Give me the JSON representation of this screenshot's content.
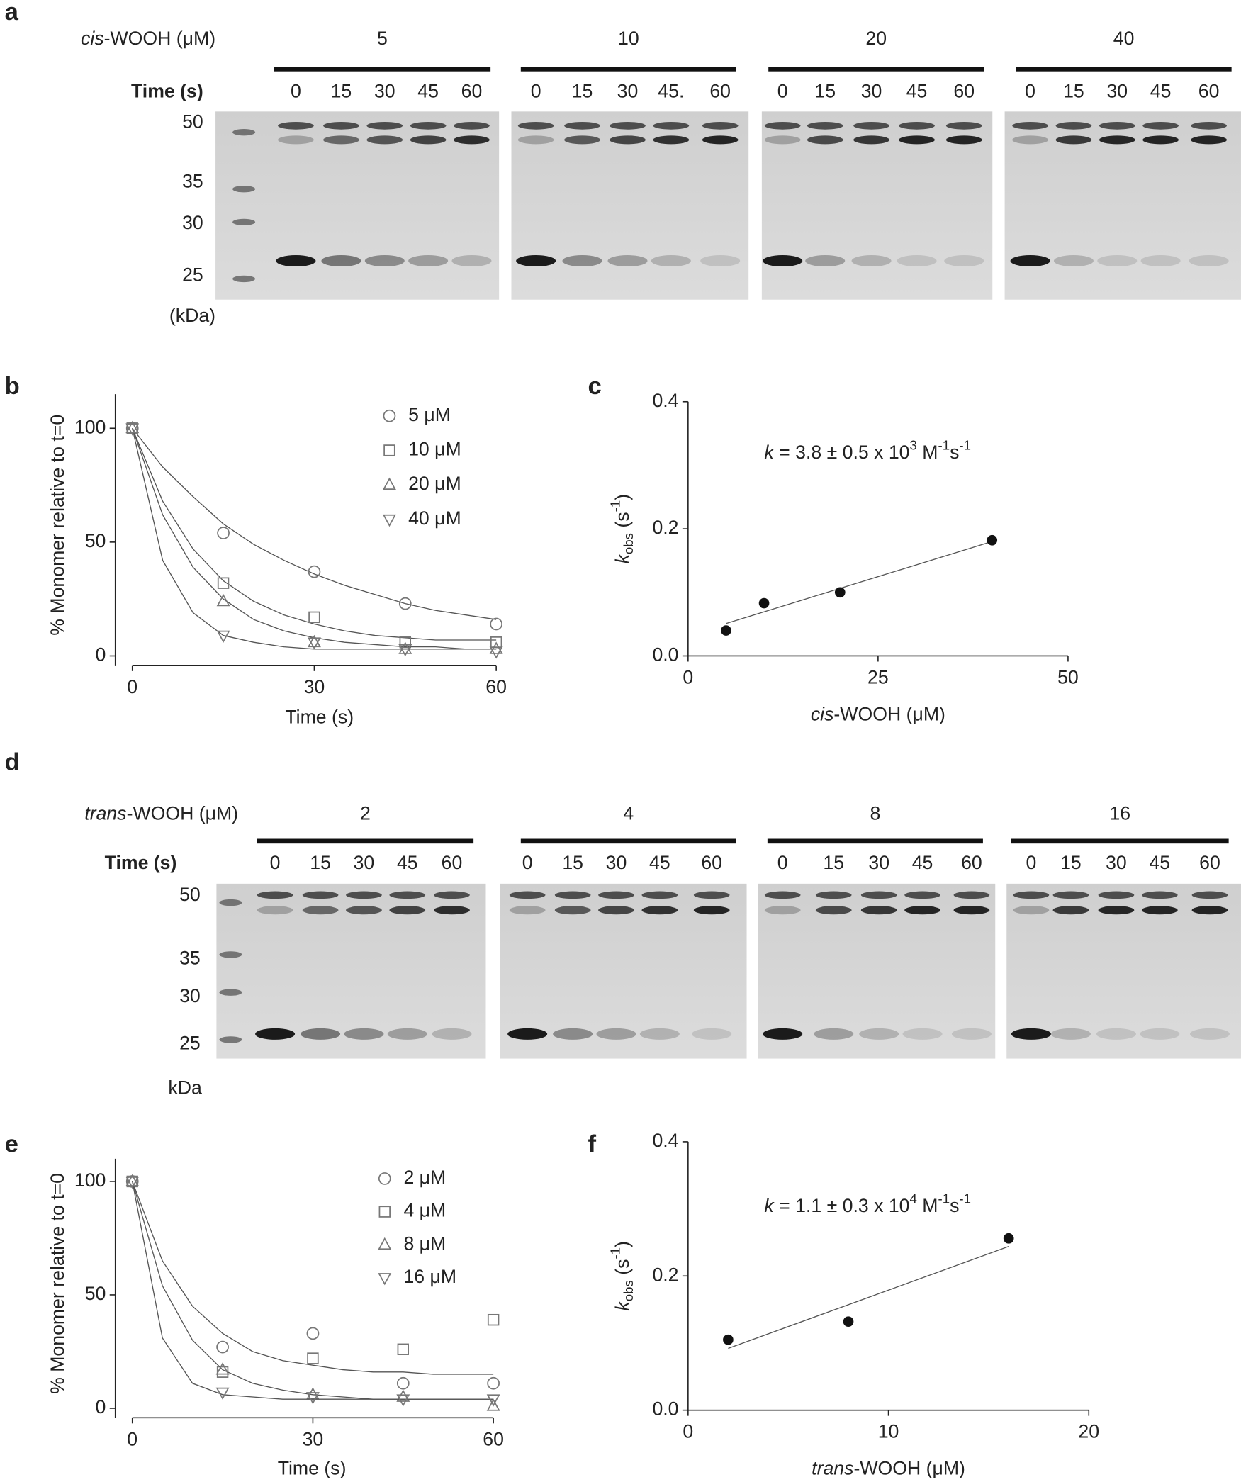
{
  "gels": [
    {
      "panel": "a",
      "concentration_label": [
        {
          "text": "cis",
          "style": "italic"
        },
        {
          "text": "-WOOH (μM)"
        }
      ],
      "time_label": "Time (s)",
      "groups": [
        {
          "concentration": "5",
          "times": [
            "0",
            "15",
            "30",
            "45",
            "60"
          ]
        },
        {
          "concentration": "10",
          "times": [
            "0",
            "15",
            "30",
            "45.",
            "60"
          ]
        },
        {
          "concentration": "20",
          "times": [
            "0",
            "15",
            "30",
            "45",
            "60"
          ]
        },
        {
          "concentration": "40",
          "times": [
            "0",
            "15",
            "30",
            "45",
            "60"
          ]
        }
      ],
      "markers": [
        "50",
        "35",
        "30",
        "25"
      ],
      "unit": "(kDa)"
    },
    {
      "panel": "d",
      "concentration_label": [
        {
          "text": "trans",
          "style": "italic"
        },
        {
          "text": "-WOOH (μM)"
        }
      ],
      "time_label": "Time (s)",
      "groups": [
        {
          "concentration": "2",
          "times": [
            "0",
            "15",
            "30",
            "45",
            "60"
          ]
        },
        {
          "concentration": "4",
          "times": [
            "0",
            "15",
            "30",
            "45",
            "60"
          ]
        },
        {
          "concentration": "8",
          "times": [
            "0",
            "15",
            "30",
            "45",
            "60"
          ]
        },
        {
          "concentration": "16",
          "times": [
            "0",
            "15",
            "30",
            "45",
            "60"
          ]
        }
      ],
      "markers": [
        "50",
        "35",
        "30",
        "25"
      ],
      "unit": "kDa"
    }
  ],
  "chart_data": [
    {
      "panel": "b",
      "type": "scatter",
      "x": [
        0,
        15,
        30,
        45,
        60
      ],
      "fit_x": [
        0,
        5,
        10,
        15,
        20,
        25,
        30,
        35,
        40,
        45,
        50,
        55,
        60
      ],
      "xlim": [
        0,
        60
      ],
      "xticks": [
        0,
        30,
        60
      ],
      "ylim": [
        0,
        115
      ],
      "yticks": [
        0,
        50,
        100
      ],
      "xlabel": "Time (s)",
      "ylabel": "% Monomer relative to t=0",
      "legend": "top-right",
      "fit_color": "#555555",
      "series": [
        {
          "name": "5 μM",
          "marker": "circle",
          "color": "#777777",
          "values": [
            100,
            54,
            37,
            23,
            14
          ],
          "fit": [
            100,
            83,
            70,
            58,
            49,
            42,
            36,
            31,
            27,
            23,
            20,
            18,
            16
          ]
        },
        {
          "name": "10 μM",
          "marker": "square",
          "color": "#777777",
          "values": [
            100,
            32,
            17,
            6,
            6
          ],
          "fit": [
            100,
            68,
            47,
            33,
            24,
            18,
            14,
            11,
            9,
            8,
            7,
            7,
            7
          ]
        },
        {
          "name": "20 μM",
          "marker": "triangle",
          "color": "#777777",
          "values": [
            100,
            24,
            6,
            3,
            3
          ],
          "fit": [
            100,
            62,
            39,
            25,
            16,
            11,
            8,
            6,
            5,
            4,
            4,
            3,
            3
          ]
        },
        {
          "name": "40 μM",
          "marker": "triangle-down",
          "color": "#777777",
          "values": [
            100,
            9,
            6,
            3,
            2
          ],
          "fit": [
            100,
            42,
            19,
            9,
            6,
            4,
            3,
            3,
            3,
            3,
            3,
            3,
            3
          ]
        }
      ]
    },
    {
      "panel": "c",
      "type": "scatter",
      "x": [
        5,
        10,
        20,
        40
      ],
      "fit_x": [
        5,
        40
      ],
      "xlim": [
        0,
        50
      ],
      "xticks": [
        0,
        25,
        50
      ],
      "ylim": [
        0,
        0.4
      ],
      "yticks": [
        {
          "value": 0,
          "label": "0.0"
        },
        0.2,
        0.4
      ],
      "xlabel": [
        {
          "text": "cis",
          "style": "italic"
        },
        {
          "text": "-WOOH (μM)"
        }
      ],
      "ylabel": [
        {
          "text": "k",
          "style": "italic"
        },
        {
          "text": "obs",
          "style": "sub"
        },
        {
          "text": " (s"
        },
        {
          "text": "-1",
          "style": "sup"
        },
        {
          "text": ")"
        }
      ],
      "annotation": [
        {
          "text": "k",
          "style": "italic"
        },
        {
          "text": " = 3.8 ± 0.5 x 10"
        },
        {
          "text": "3",
          "style": "sup"
        },
        {
          "text": " M"
        },
        {
          "text": "-1",
          "style": "sup"
        },
        {
          "text": "s"
        },
        {
          "text": "-1",
          "style": "sup"
        }
      ],
      "fit_color": "#555555",
      "series": [
        {
          "marker": "dot",
          "color": "#111111",
          "values": [
            0.04,
            0.083,
            0.1,
            0.182
          ],
          "fit": [
            0.051,
            0.18
          ]
        }
      ]
    },
    {
      "panel": "e",
      "type": "scatter",
      "x": [
        0,
        15,
        30,
        45,
        60
      ],
      "fit_x": [
        0,
        5,
        10,
        15,
        20,
        25,
        30,
        35,
        40,
        45,
        50,
        55,
        60
      ],
      "xlim": [
        0,
        60
      ],
      "xticks": [
        0,
        30,
        60
      ],
      "ylim": [
        0,
        110
      ],
      "yticks": [
        0,
        50,
        100
      ],
      "xlabel": "Time (s)",
      "ylabel": "% Monomer relative to t=0",
      "legend": "top-right",
      "fit_color": "#555555",
      "series": [
        {
          "name": "2 μM",
          "marker": "circle",
          "color": "#777777",
          "values": [
            100,
            27,
            33,
            11,
            11
          ],
          "fit": [
            100,
            65,
            45,
            33,
            25,
            21,
            19,
            17,
            16,
            16,
            15,
            15,
            15
          ]
        },
        {
          "name": "4 μM",
          "marker": "square",
          "color": "#777777",
          "values": [
            100,
            16,
            22,
            26,
            39
          ]
        },
        {
          "name": "8 μM",
          "marker": "triangle",
          "color": "#777777",
          "values": [
            100,
            17,
            6,
            5,
            1
          ],
          "fit": [
            100,
            54,
            30,
            17,
            11,
            8,
            6,
            5,
            4,
            4,
            4,
            4,
            4
          ]
        },
        {
          "name": "16 μM",
          "marker": "triangle-down",
          "color": "#777777",
          "values": [
            100,
            7,
            5,
            4,
            4
          ],
          "fit": [
            100,
            31,
            11,
            6,
            5,
            4,
            4,
            4,
            4,
            4,
            4,
            4,
            4
          ]
        }
      ]
    },
    {
      "panel": "f",
      "type": "scatter",
      "x": [
        2,
        8,
        16
      ],
      "fit_x": [
        2,
        16
      ],
      "xlim": [
        0,
        20
      ],
      "xticks": [
        0,
        10,
        20
      ],
      "ylim": [
        0,
        0.4
      ],
      "yticks": [
        {
          "value": 0,
          "label": "0.0"
        },
        0.2,
        0.4
      ],
      "xlabel": [
        {
          "text": "trans",
          "style": "italic"
        },
        {
          "text": "-WOOH (μM)"
        }
      ],
      "ylabel": [
        {
          "text": "k",
          "style": "italic"
        },
        {
          "text": "obs",
          "style": "sub"
        },
        {
          "text": " (s"
        },
        {
          "text": "-1",
          "style": "sup"
        },
        {
          "text": ")"
        }
      ],
      "annotation": [
        {
          "text": "k",
          "style": "italic"
        },
        {
          "text": " = 1.1 ± 0.3 x 10"
        },
        {
          "text": "4",
          "style": "sup"
        },
        {
          "text": " M"
        },
        {
          "text": "-1",
          "style": "sup"
        },
        {
          "text": "s"
        },
        {
          "text": "-1",
          "style": "sup"
        }
      ],
      "fit_color": "#555555",
      "series": [
        {
          "marker": "dot",
          "color": "#111111",
          "values": [
            0.105,
            0.132,
            0.256
          ],
          "fit": [
            0.092,
            0.244
          ]
        }
      ]
    }
  ]
}
